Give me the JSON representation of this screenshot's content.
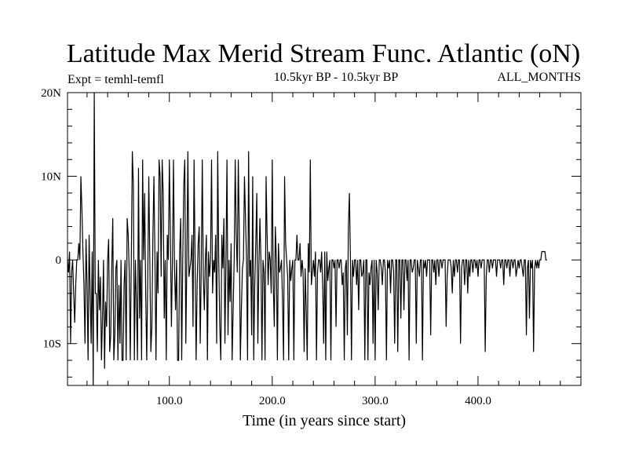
{
  "chart_data": {
    "type": "line",
    "title": "Latitude Max Merid Stream Func. Atlantic (oN)",
    "subtitle_left": "Expt = temhl-temfl",
    "subtitle_center": "10.5kyr BP - 10.5kyr BP",
    "subtitle_right": "ALL_MONTHS",
    "xlabel": "Time (in years since start)",
    "ylabel": "",
    "xlim": [
      1,
      500
    ],
    "ylim": [
      -15,
      20
    ],
    "x_ticks": [
      {
        "value": 100,
        "label": "100.0"
      },
      {
        "value": 200,
        "label": "200.0"
      },
      {
        "value": 300,
        "label": "300.0"
      },
      {
        "value": 400,
        "label": "400.0"
      }
    ],
    "y_ticks": [
      {
        "value": 20,
        "label": "20N"
      },
      {
        "value": 10,
        "label": "10N"
      },
      {
        "value": 0,
        "label": "0"
      },
      {
        "value": -10,
        "label": "10S"
      }
    ],
    "line_color": "#000000",
    "series": [
      {
        "name": "",
        "x_start": 1,
        "x_step": 1,
        "values": [
          0,
          -1.5,
          1,
          -10,
          -1.5,
          0,
          -4,
          -7.5,
          -3,
          0,
          0,
          2,
          0,
          10,
          6,
          1,
          -3,
          -10,
          2.5,
          -3,
          -12,
          3,
          -4,
          -10,
          1,
          -15,
          20,
          -4,
          -4,
          -11,
          0,
          -6,
          -2,
          -12,
          -7,
          0,
          -13,
          -5,
          -8,
          0,
          2.5,
          -11,
          -9,
          -1,
          5,
          -12,
          -9,
          -1,
          0,
          -12,
          -3,
          -10,
          0,
          -12,
          -12,
          -3,
          0,
          -12,
          5,
          3,
          -1.5,
          -12,
          0,
          13,
          9,
          -12,
          0,
          -5,
          -12,
          11,
          -7,
          0,
          -12,
          12,
          0,
          8,
          -4,
          -12,
          -2,
          10,
          0,
          -11,
          -8,
          3,
          10,
          0,
          -12,
          1,
          -4,
          12,
          10,
          -2,
          12,
          8,
          -7,
          0,
          -12,
          3,
          0,
          12,
          3,
          -8,
          0,
          12,
          -1,
          -6,
          0,
          -12,
          -12,
          1,
          5,
          -12,
          0,
          9,
          12,
          -10,
          0,
          13,
          -2,
          -1,
          0,
          3,
          -8,
          12,
          0,
          -12,
          -3,
          2,
          4,
          -10,
          -1,
          12,
          -2,
          -6,
          0,
          3,
          -12,
          1,
          -2,
          0,
          12,
          -4,
          0,
          -1.5,
          3,
          -10,
          13,
          0,
          -8,
          -12,
          3,
          -1,
          5,
          -10,
          0,
          12,
          -9,
          0,
          -5,
          2,
          -12,
          -6,
          0,
          12,
          3,
          -1.5,
          12,
          3,
          -12,
          -6,
          -1,
          0,
          10,
          5,
          0,
          -12,
          13,
          -2,
          0,
          -9,
          10,
          -12,
          -3,
          2,
          8,
          -10,
          -1,
          5,
          0,
          -12,
          0,
          -1.5,
          -12,
          10,
          3,
          -3,
          1,
          0,
          -4,
          12,
          -3,
          -8,
          4,
          0,
          -12,
          2,
          -1.5,
          -1,
          0,
          -5,
          -12,
          10,
          2,
          0,
          -2,
          -12,
          0,
          -2.5,
          -1,
          0,
          -12,
          0,
          0,
          3,
          0,
          0,
          2,
          -2,
          0,
          -1.5,
          -11,
          -1,
          -6,
          -12,
          2,
          -1.5,
          12,
          -3,
          -1.5,
          0,
          -2,
          1,
          -12,
          -1.5,
          0,
          0,
          -1.5,
          1,
          -3,
          -10,
          1,
          -12,
          1,
          -2.5,
          -1,
          0,
          -12,
          0,
          0,
          -1,
          0,
          -8,
          0,
          0,
          -1,
          0,
          0,
          -3,
          -1.5,
          -12,
          -1,
          0,
          -9,
          4,
          8,
          0,
          -12,
          0,
          -2,
          0,
          0,
          -3,
          0,
          -6,
          0,
          0,
          -2,
          -1.5,
          0,
          -12,
          0,
          0,
          -12,
          -1.5,
          -3,
          -1,
          0,
          -10,
          0,
          -12,
          0,
          -1.5,
          -6,
          0,
          0,
          -1,
          -3,
          0,
          0,
          -1.5,
          -12,
          0,
          -1,
          0,
          -4,
          0,
          0,
          -1.5,
          -10,
          0,
          0,
          -11,
          0,
          0,
          -7,
          0,
          0,
          -6,
          0,
          0,
          -2.5,
          0,
          -12,
          0,
          0,
          -1.5,
          -1,
          0,
          0,
          -10,
          0,
          -1,
          -2,
          0,
          0,
          -12,
          0,
          -1,
          0,
          -2,
          0,
          0,
          0,
          -9,
          0,
          0,
          -1.5,
          0,
          -3,
          0,
          0,
          -2,
          0,
          0,
          -1,
          0,
          0,
          0,
          -8,
          -2,
          0,
          0,
          0,
          -1,
          -4,
          0,
          -2,
          0,
          0,
          -1.5,
          0,
          0,
          -10,
          -1,
          0,
          0,
          -3,
          0,
          0,
          -4,
          0,
          -2,
          0,
          0,
          -1.5,
          0,
          0,
          -1,
          0,
          -2,
          0,
          0,
          -1,
          0,
          0,
          0,
          -11,
          -2,
          0,
          0,
          -1.5,
          0,
          0,
          -1,
          0,
          0,
          0,
          -2,
          0,
          0,
          0,
          -1,
          0,
          0,
          -3,
          0,
          0,
          -1,
          0,
          0,
          -2,
          0,
          0,
          -1,
          0,
          0,
          -2,
          -1,
          0,
          -1,
          0,
          0,
          -1,
          -2,
          0,
          0,
          -9,
          -1,
          0,
          -7,
          0,
          -1,
          0,
          -11,
          -1,
          0,
          -1,
          0,
          -1,
          0,
          0,
          1,
          1,
          1,
          1,
          0,
          0
        ]
      }
    ]
  }
}
